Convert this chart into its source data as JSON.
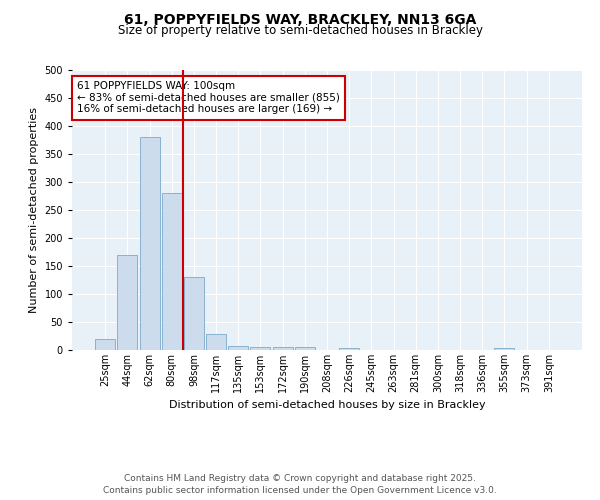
{
  "title1": "61, POPPYFIELDS WAY, BRACKLEY, NN13 6GA",
  "title2": "Size of property relative to semi-detached houses in Brackley",
  "xlabel": "Distribution of semi-detached houses by size in Brackley",
  "ylabel": "Number of semi-detached properties",
  "bar_labels": [
    "25sqm",
    "44sqm",
    "62sqm",
    "80sqm",
    "98sqm",
    "117sqm",
    "135sqm",
    "153sqm",
    "172sqm",
    "190sqm",
    "208sqm",
    "226sqm",
    "245sqm",
    "263sqm",
    "281sqm",
    "300sqm",
    "318sqm",
    "336sqm",
    "355sqm",
    "373sqm",
    "391sqm"
  ],
  "bar_values": [
    20,
    170,
    380,
    280,
    130,
    28,
    8,
    5,
    5,
    5,
    0,
    4,
    0,
    0,
    0,
    0,
    0,
    0,
    3,
    0,
    0
  ],
  "bar_color": "#ccdcec",
  "bar_edgecolor": "#7aaacb",
  "vline_color": "#cc0000",
  "vline_pos": 4,
  "annotation_title": "61 POPPYFIELDS WAY: 100sqm",
  "annotation_line1": "← 83% of semi-detached houses are smaller (855)",
  "annotation_line2": "16% of semi-detached houses are larger (169) →",
  "annotation_box_edgecolor": "#cc0000",
  "ylim": [
    0,
    500
  ],
  "yticks": [
    0,
    50,
    100,
    150,
    200,
    250,
    300,
    350,
    400,
    450,
    500
  ],
  "fig_background": "#ffffff",
  "plot_background": "#e8f0f8",
  "grid_color": "#ffffff",
  "footer_line1": "Contains HM Land Registry data © Crown copyright and database right 2025.",
  "footer_line2": "Contains public sector information licensed under the Open Government Licence v3.0.",
  "title_fontsize": 10,
  "subtitle_fontsize": 8.5,
  "axis_label_fontsize": 8,
  "tick_fontsize": 7,
  "footer_fontsize": 6.5,
  "annotation_fontsize": 7.5
}
